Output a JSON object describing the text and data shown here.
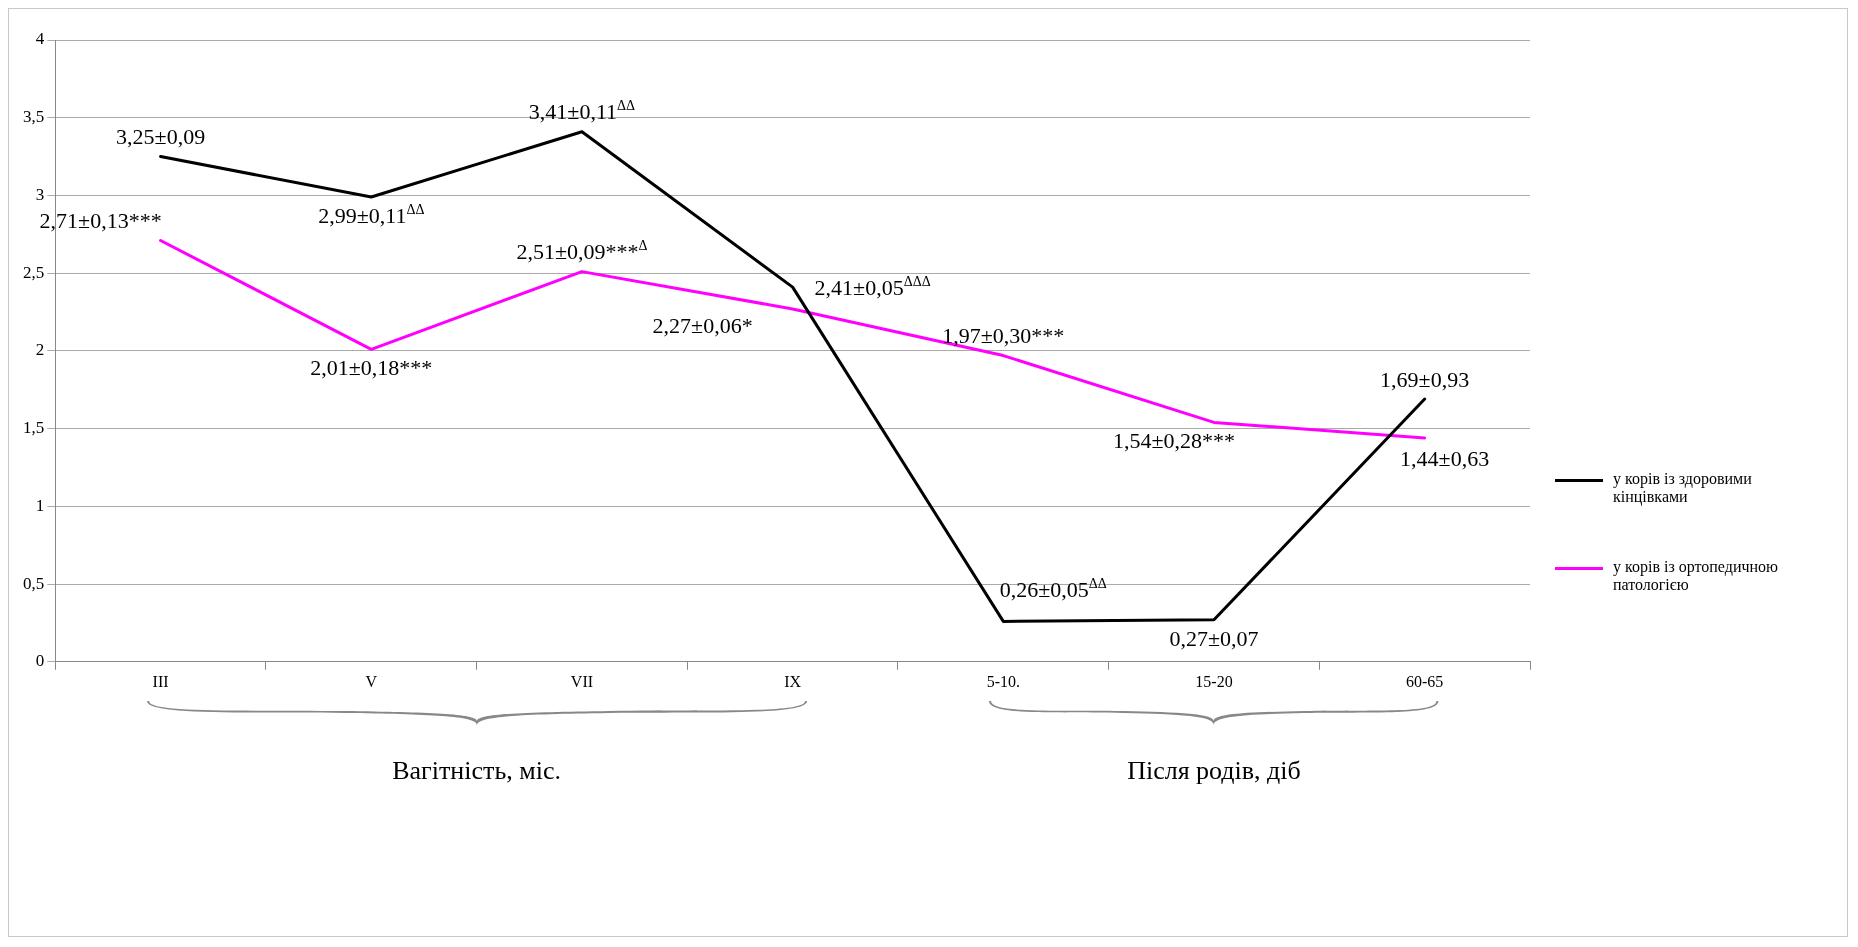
{
  "chart_data": {
    "type": "line",
    "categories": [
      "III",
      "V",
      "VII",
      "IX",
      "5-10.",
      "15-20",
      "60-65"
    ],
    "series": [
      {
        "name": "у корів із здоровими кінцівками",
        "color": "#000000",
        "values": [
          3.25,
          2.99,
          3.41,
          2.41,
          0.26,
          0.27,
          1.69
        ],
        "value_labels": [
          "3,25±0,09",
          "2,99±0,11$^{ΔΔ}$",
          "3,41±0,11$^{ΔΔ}$",
          "2,41±0,05$^{ΔΔΔ}$",
          "0,26±0,05$^{ΔΔ}$",
          "0,27±0,07",
          "1,69±0,93"
        ]
      },
      {
        "name": "у корів із ортопедичною патологією",
        "color": "#ff00ff",
        "values": [
          2.71,
          2.01,
          2.51,
          2.27,
          1.97,
          1.54,
          1.44
        ],
        "value_labels": [
          "2,71±0,13***",
          "2,01±0,18***",
          "2,51±0,09***$^{Δ}$",
          "2,27±0,06*",
          "1,97±0,30***",
          "1,54±0,28***",
          "1,44±0,63"
        ]
      }
    ],
    "ylim": [
      0,
      4
    ],
    "yticks": [
      0,
      {
        "value": 0.5,
        "label": "0,5"
      },
      1,
      {
        "value": 1.5,
        "label": "1,5"
      },
      2,
      {
        "value": 2.5,
        "label": "2,5"
      },
      3,
      {
        "value": 3.5,
        "label": "3,5"
      },
      4
    ],
    "grid": "y",
    "legend": "right",
    "marker": "none",
    "line_style": "solid",
    "annotations": [
      "Вагітність, міс.",
      "Після родів, діб"
    ]
  }
}
